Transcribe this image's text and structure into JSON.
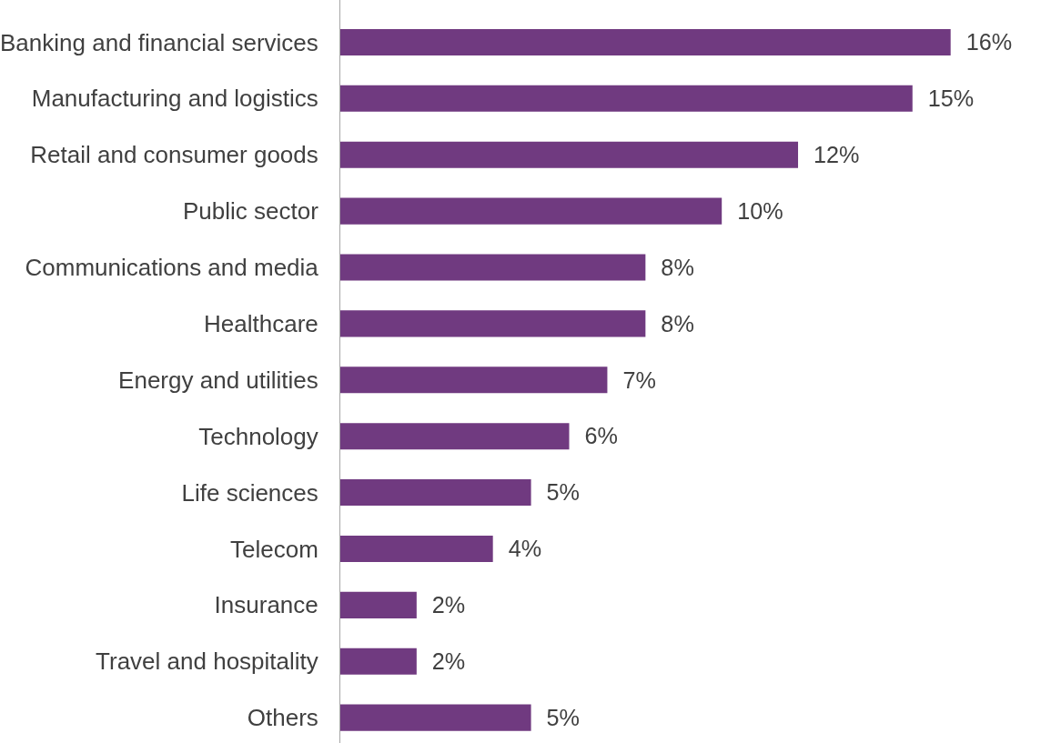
{
  "chart_data": {
    "type": "bar",
    "orientation": "horizontal",
    "categories": [
      "Banking and financial services",
      "Manufacturing and logistics",
      "Retail and consumer goods",
      "Public sector",
      "Communications and media",
      "Healthcare",
      "Energy and utilities",
      "Technology",
      "Life sciences",
      "Telecom",
      "Insurance",
      "Travel and hospitality",
      "Others"
    ],
    "values": [
      16,
      15,
      12,
      10,
      8,
      8,
      7,
      6,
      5,
      4,
      2,
      2,
      5
    ],
    "color": "#703a80",
    "value_labels": [
      "16%",
      "15%",
      "12%",
      "10%",
      "8%",
      "8%",
      "7%",
      "6%",
      "5%",
      "4%",
      "2%",
      "2%",
      "5%"
    ]
  }
}
